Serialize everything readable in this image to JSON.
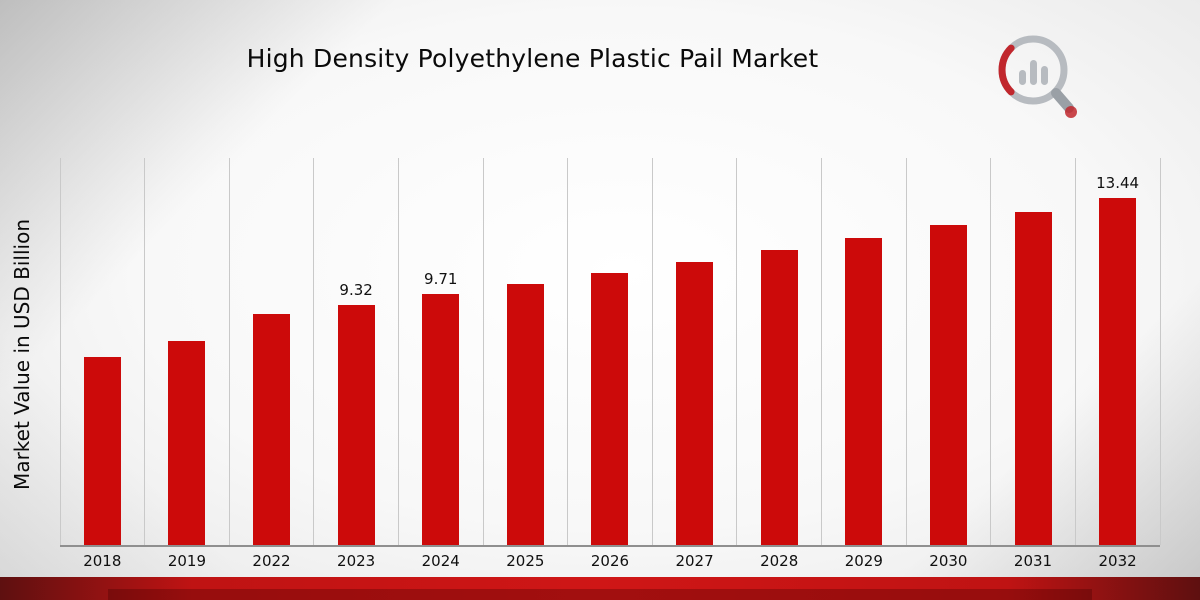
{
  "page": {
    "title": "High Density Polyethylene Plastic Pail Market"
  },
  "chart_data": {
    "type": "bar",
    "title": "High Density Polyethylene Plastic Pail Market",
    "xlabel": "",
    "ylabel": "Market Value in USD Billion",
    "categories": [
      "2018",
      "2019",
      "2022",
      "2023",
      "2024",
      "2025",
      "2026",
      "2027",
      "2028",
      "2029",
      "2030",
      "2031",
      "2032"
    ],
    "values": [
      7.3,
      7.9,
      8.95,
      9.32,
      9.71,
      10.11,
      10.53,
      10.97,
      11.42,
      11.9,
      12.39,
      12.9,
      13.44
    ],
    "data_labels": [
      "",
      "",
      "",
      "9.32",
      "9.71",
      "",
      "",
      "",
      "",
      "",
      "",
      "",
      "13.44"
    ],
    "ylim": [
      0,
      15
    ],
    "grid": "vertical-only",
    "legend": "none",
    "bar_color": "#cc0a0a"
  },
  "branding": {
    "logo_icon": "magnifier-bar-chart-logo"
  },
  "colors": {
    "bar": "#cc0a0a",
    "footer_red": "#cf1616",
    "footer_dark_red": "#5e1010",
    "gridline": "#c9c9c9",
    "background_gray": "#e6e6e6",
    "text": "#0a0a0a"
  }
}
